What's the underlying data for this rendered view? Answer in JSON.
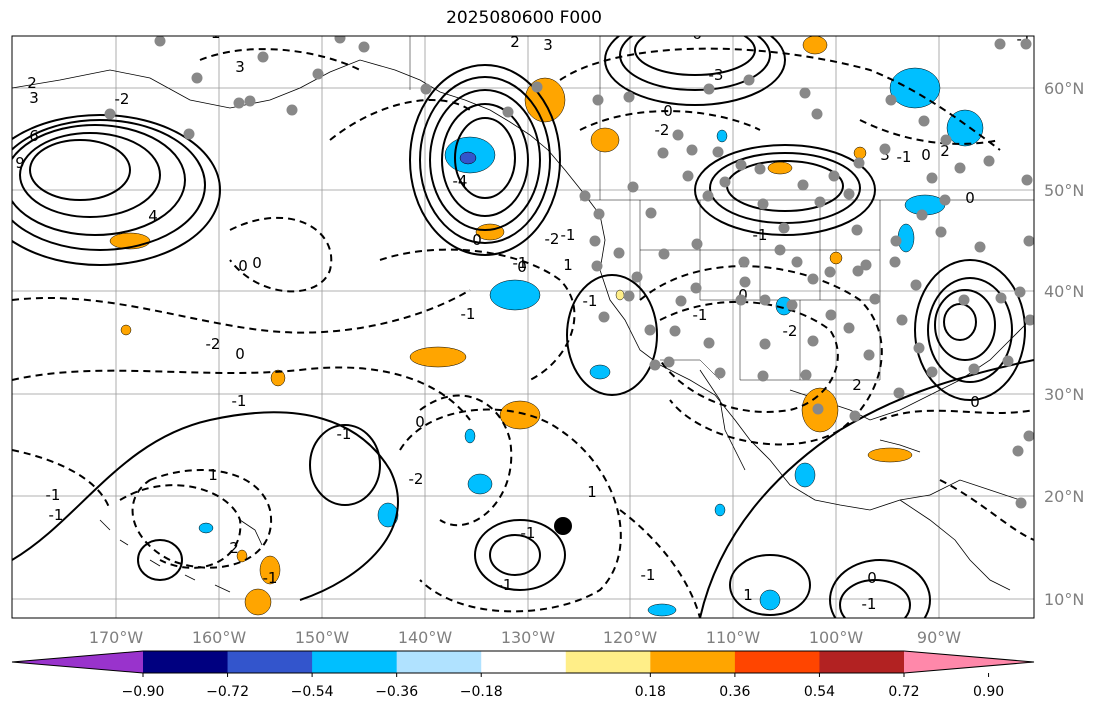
{
  "title": "2025080600 F000",
  "map": {
    "lon_labels": [
      "170°W",
      "160°W",
      "150°W",
      "140°W",
      "130°W",
      "120°W",
      "110°W",
      "100°W",
      "90°W"
    ],
    "lat_labels": [
      "60°N",
      "50°N",
      "40°N",
      "30°N",
      "20°N",
      "10°N"
    ],
    "contour_labels": [
      "2",
      "3",
      "6",
      "9",
      "4",
      "-2",
      "3",
      "-1",
      "2",
      "3",
      "6",
      "-3",
      "0",
      "-2",
      "-4",
      "0",
      "-1",
      "-2",
      "-1",
      "1",
      "-1",
      "0",
      "-1",
      "-2",
      "0",
      "-1",
      "-1",
      "0",
      "-2",
      "2",
      "3",
      "-1",
      "0",
      "2",
      "0",
      "-1",
      "0",
      "0",
      "-1",
      "-1",
      "0",
      "-2",
      "1",
      "-1",
      "-1",
      "2",
      "-1",
      "-1",
      "-1",
      "1",
      "-1",
      "1",
      "0",
      "-1",
      "0"
    ],
    "style": {
      "land_color": "#b0b0b0",
      "contour_color": "#000000",
      "station_color": "#888888"
    }
  },
  "colorbar": {
    "tick_labels": [
      "−0.90",
      "−0.72",
      "−0.54",
      "−0.36",
      "−0.18",
      "0.18",
      "0.36",
      "0.54",
      "0.72",
      "0.90"
    ],
    "colors": [
      "#9933cc",
      "#000080",
      "#3355cc",
      "#00bfff",
      "#b0e2ff",
      "#ffffff",
      "#ffee88",
      "#ffa500",
      "#ff4500",
      "#b22222",
      "#ff88aa"
    ]
  }
}
